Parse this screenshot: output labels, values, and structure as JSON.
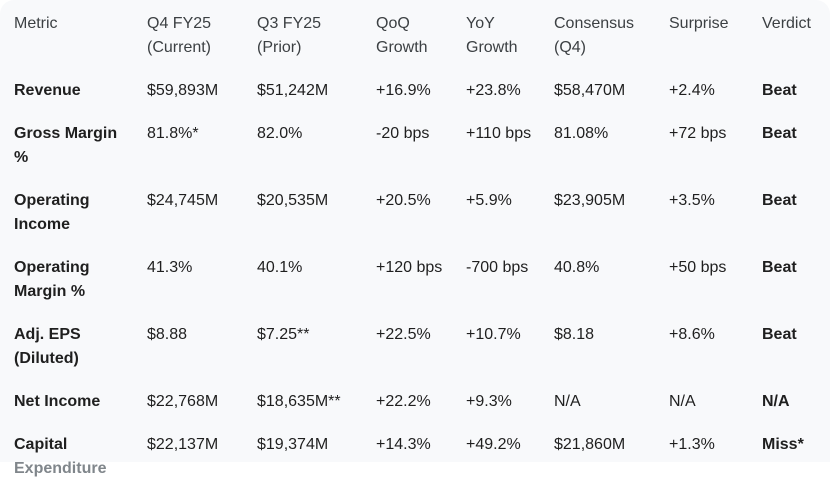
{
  "table": {
    "headers": [
      "Metric",
      "Q4 FY25 (Current)",
      "Q3 FY25 (Prior)",
      "QoQ Growth",
      "YoY Growth",
      "Consensus (Q4)",
      "Surprise",
      "Verdict"
    ],
    "rows": [
      {
        "metric": "Revenue",
        "current": "$59,893M",
        "prior": "$51,242M",
        "qoq": "+16.9%",
        "yoy": "+23.8%",
        "consensus": "$58,470M",
        "surprise": "+2.4%",
        "verdict": "Beat"
      },
      {
        "metric": "Gross Margin %",
        "current": "81.8%*",
        "prior": "82.0%",
        "qoq": "-20 bps",
        "yoy": "+110 bps",
        "consensus": "81.08%",
        "surprise": "+72 bps",
        "verdict": "Beat"
      },
      {
        "metric": "Operating Income",
        "current": "$24,745M",
        "prior": "$20,535M",
        "qoq": "+20.5%",
        "yoy": "+5.9%",
        "consensus": "$23,905M",
        "surprise": "+3.5%",
        "verdict": "Beat"
      },
      {
        "metric": "Operating Margin %",
        "current": "41.3%",
        "prior": "40.1%",
        "qoq": "+120 bps",
        "yoy": "-700 bps",
        "consensus": "40.8%",
        "surprise": "+50 bps",
        "verdict": "Beat"
      },
      {
        "metric": "Adj. EPS (Diluted)",
        "current": "$8.88",
        "prior": "$7.25**",
        "qoq": "+22.5%",
        "yoy": "+10.7%",
        "consensus": "$8.18",
        "surprise": "+8.6%",
        "verdict": "Beat"
      },
      {
        "metric": "Net Income",
        "current": "$22,768M",
        "prior": "$18,635M**",
        "qoq": "+22.2%",
        "yoy": "+9.3%",
        "consensus": "N/A",
        "surprise": "N/A",
        "verdict": "N/A"
      },
      {
        "metric_line1": "Capital",
        "metric_line2": "Expenditure",
        "current": "$22,137M",
        "prior": "$19,374M",
        "qoq": "+14.3%",
        "yoy": "+49.2%",
        "consensus": "$21,860M",
        "surprise": "+1.3%",
        "verdict": "Miss*"
      }
    ]
  }
}
